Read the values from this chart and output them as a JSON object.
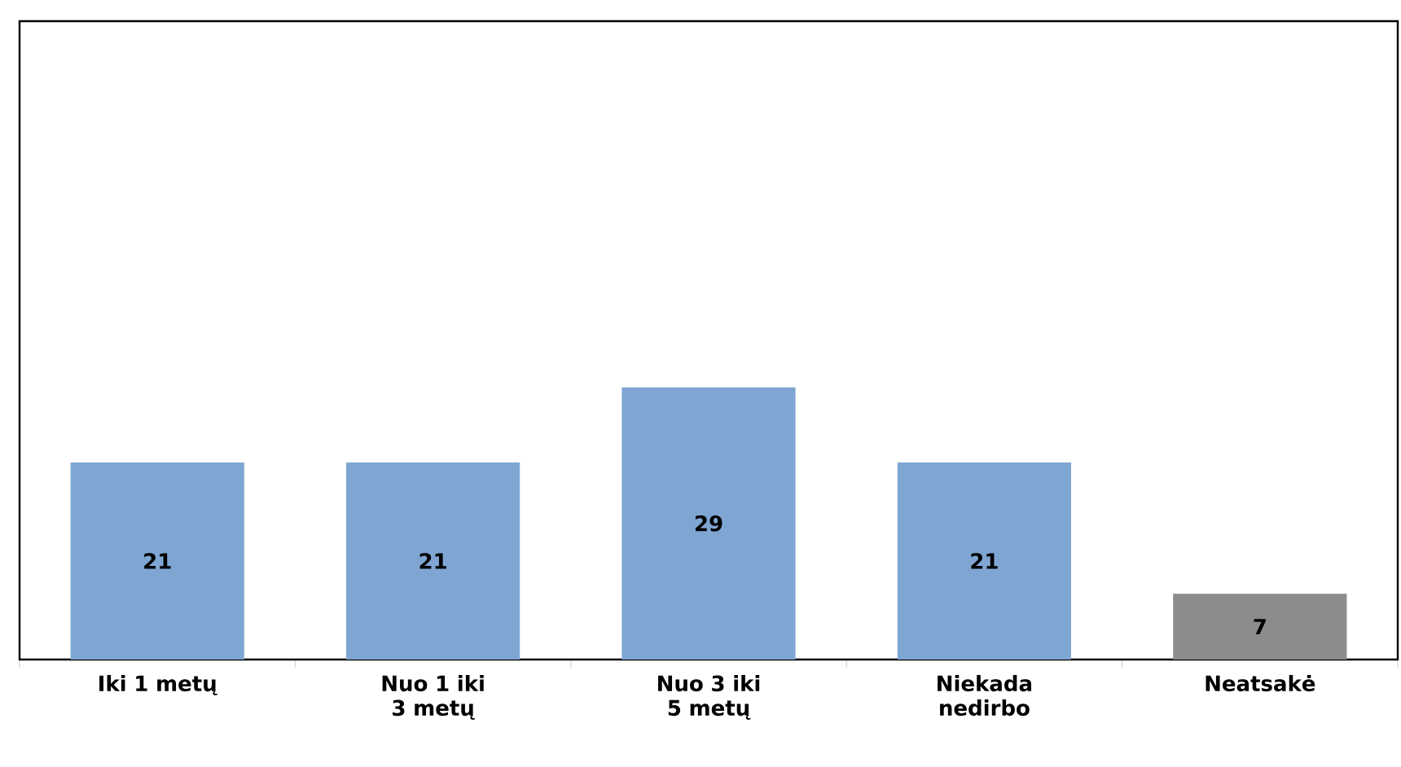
{
  "chart_data": {
    "type": "bar",
    "categories": [
      "Iki 1 metų",
      "Nuo 1 iki 3 metų",
      "Nuo 3 iki 5 metų",
      "Niekada nedirbo",
      "Neatsakė"
    ],
    "values": [
      21,
      21,
      29,
      21,
      7
    ],
    "colors": [
      "#7fa6d3",
      "#7fa6d3",
      "#7fa6d3",
      "#7fa6d3",
      "#8c8c8c"
    ],
    "ylim": [
      0,
      68
    ],
    "data_labels": true
  }
}
